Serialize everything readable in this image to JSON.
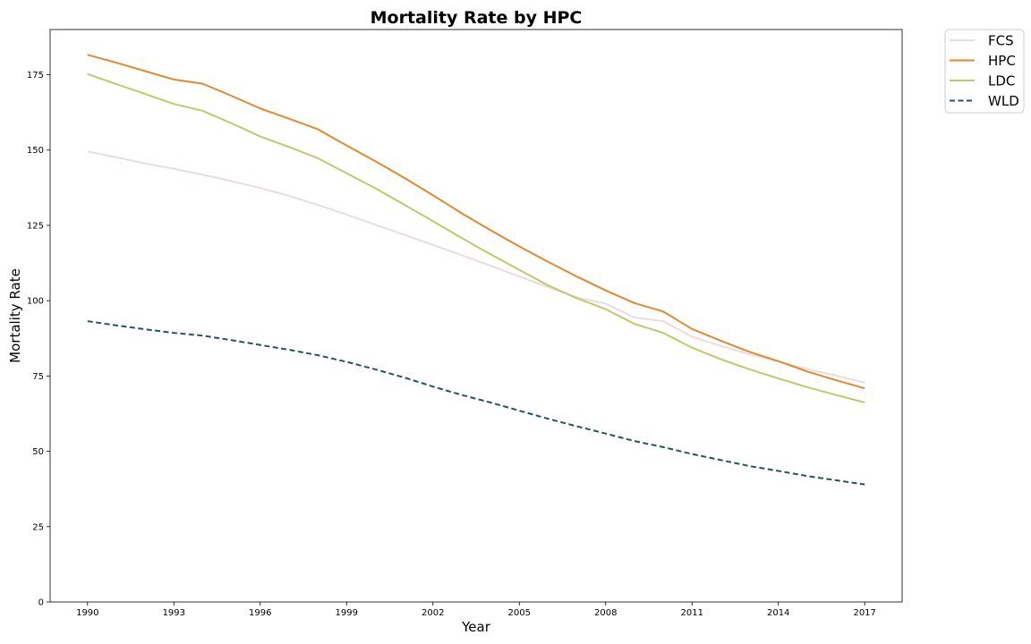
{
  "chart_data": {
    "type": "line",
    "title": "Mortality Rate by HPC",
    "xlabel": "Year",
    "ylabel": "Mortality Rate",
    "xlim": [
      1988.7,
      2018.3
    ],
    "ylim": [
      0,
      190
    ],
    "x_ticks": [
      1990,
      1993,
      1996,
      1999,
      2002,
      2005,
      2008,
      2011,
      2014,
      2017
    ],
    "y_ticks": [
      0,
      25,
      50,
      75,
      100,
      125,
      150,
      175
    ],
    "grid": false,
    "legend_position": "outside top-right",
    "x": [
      1990,
      1991,
      1992,
      1993,
      1994,
      1995,
      1996,
      1997,
      1998,
      1999,
      2000,
      2001,
      2002,
      2003,
      2004,
      2005,
      2006,
      2007,
      2008,
      2009,
      2010,
      2011,
      2012,
      2013,
      2014,
      2015,
      2016,
      2017
    ],
    "series": [
      {
        "name": "FCS",
        "color": "#eadcdc",
        "dash": "solid",
        "values": [
          149.5,
          147.6,
          145.5,
          143.8,
          141.8,
          139.7,
          137.4,
          134.8,
          131.8,
          128.6,
          125.2,
          121.9,
          118.5,
          115.1,
          111.6,
          108.0,
          104.5,
          101.1,
          99.0,
          94.4,
          93.2,
          88.0,
          85.0,
          82.2,
          79.8,
          77.3,
          75.1,
          72.8
        ]
      },
      {
        "name": "HPC",
        "color": "#e08a2e",
        "dash": "solid",
        "values": [
          181.6,
          179.0,
          176.2,
          173.4,
          172.0,
          168.0,
          163.8,
          160.4,
          156.9,
          151.5,
          146.3,
          140.8,
          135.0,
          129.0,
          123.4,
          118.0,
          112.9,
          108.0,
          103.4,
          99.2,
          96.4,
          90.6,
          86.7,
          83.0,
          79.9,
          76.5,
          73.6,
          70.9
        ]
      },
      {
        "name": "LDC",
        "color": "#bfc96b",
        "dash": "solid",
        "values": [
          175.2,
          171.9,
          168.6,
          165.3,
          163.0,
          158.9,
          154.5,
          151.0,
          147.3,
          142.3,
          137.3,
          131.9,
          126.4,
          120.8,
          115.4,
          110.2,
          105.1,
          100.8,
          97.2,
          92.3,
          89.3,
          84.4,
          80.6,
          77.2,
          74.2,
          71.3,
          68.7,
          66.2
        ]
      },
      {
        "name": "WLD",
        "color": "#23545f",
        "dash": "dashed",
        "values": [
          93.2,
          91.8,
          90.5,
          89.3,
          88.4,
          86.9,
          85.3,
          83.7,
          81.9,
          79.7,
          77.2,
          74.5,
          71.5,
          68.7,
          66.2,
          63.5,
          60.8,
          58.3,
          55.9,
          53.4,
          51.4,
          49.1,
          47.1,
          45.1,
          43.5,
          41.8,
          40.4,
          39.0
        ]
      }
    ]
  }
}
